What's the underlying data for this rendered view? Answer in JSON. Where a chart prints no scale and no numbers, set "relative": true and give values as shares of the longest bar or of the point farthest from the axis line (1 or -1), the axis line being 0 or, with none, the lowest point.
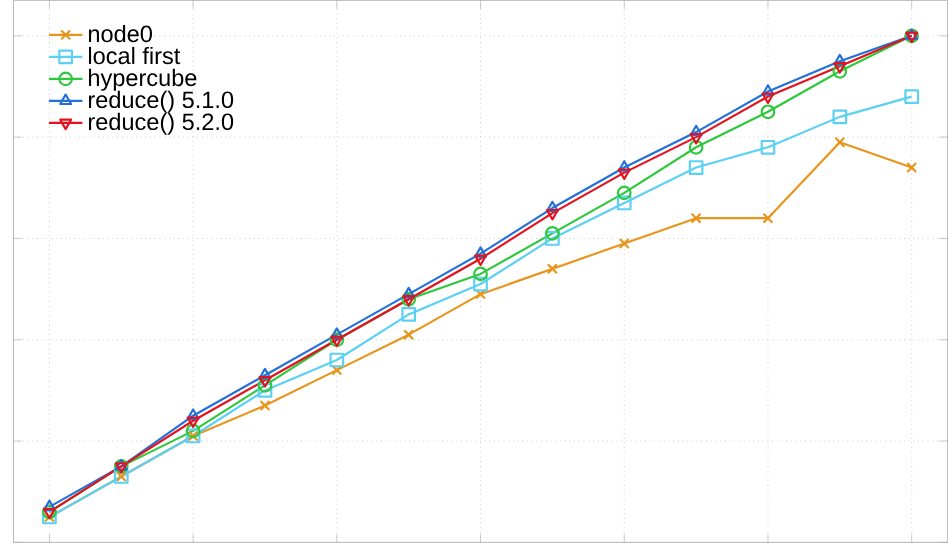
{
  "chart_data": {
    "type": "line",
    "relative": true,
    "grid": true,
    "legend": "top left",
    "line_style": "solid",
    "categories": [
      null,
      null,
      null,
      null,
      null,
      null,
      null,
      null,
      null,
      null,
      null,
      null,
      null
    ],
    "series": [
      {
        "name": "node0",
        "color": "#e8951c",
        "marker": "cross",
        "values": [
          0.05,
          0.13,
          0.21,
          0.27,
          0.34,
          0.41,
          0.49,
          0.54,
          0.59,
          0.64,
          0.64,
          0.79,
          0.74
        ]
      },
      {
        "name": "local first",
        "color": "#5cd0f2",
        "marker": "square",
        "values": [
          0.05,
          0.13,
          0.21,
          0.3,
          0.36,
          0.45,
          0.51,
          0.6,
          0.67,
          0.74,
          0.78,
          0.84,
          0.88
        ]
      },
      {
        "name": "hypercube",
        "color": "#2ec83c",
        "marker": "circle",
        "values": [
          0.06,
          0.15,
          0.22,
          0.31,
          0.4,
          0.48,
          0.53,
          0.61,
          0.69,
          0.78,
          0.85,
          0.93,
          1
        ]
      },
      {
        "name": "reduce() 5.1.0",
        "color": "#2270d8",
        "marker": "triangle",
        "values": [
          0.07,
          0.15,
          0.25,
          0.33,
          0.41,
          0.49,
          0.57,
          0.66,
          0.74,
          0.81,
          0.89,
          0.95,
          1
        ]
      },
      {
        "name": "reduce() 5.2.0",
        "color": "#e3121f",
        "marker": "triangle",
        "values": [
          0.06,
          0.15,
          0.24,
          0.32,
          0.4,
          0.48,
          0.56,
          0.65,
          0.73,
          0.8,
          0.88,
          0.94,
          1
        ]
      }
    ]
  }
}
